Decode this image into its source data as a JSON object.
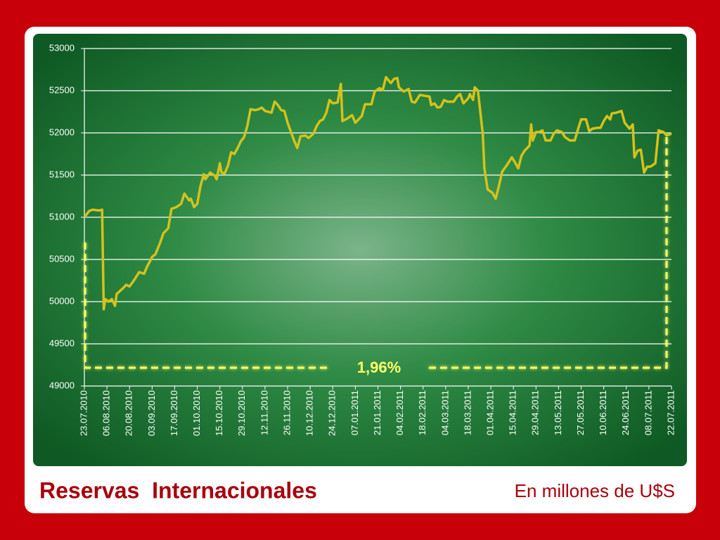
{
  "chart_data": {
    "type": "line",
    "title": "Reservas  Internacionales",
    "subtitle": "En millones de U$S",
    "annotation": "1,96%",
    "color": "#d4c21a",
    "grid": true,
    "ylim": [
      49000,
      53000
    ],
    "yticks": [
      49000,
      49500,
      50000,
      50500,
      51000,
      51500,
      52000,
      52500,
      53000
    ],
    "xlim": [
      "23.07.2010",
      "22.07.2011"
    ],
    "xticks": [
      "23.07.2010",
      "06.08.2010",
      "20.08.2010",
      "03.09.2010",
      "17.09.2010",
      "01.10.2010",
      "15.10.2010",
      "29.10.2010",
      "12.11.2010",
      "26.11.2010",
      "10.12.2010",
      "24.12.2010",
      "07.01.2011",
      "21.01.2011",
      "04.02.2011",
      "18.02.2011",
      "04.03.2011",
      "18.03.2011",
      "01.04.2011",
      "15.04.2011",
      "29.04.2011",
      "13.05.2011",
      "27.05.2011",
      "10.06.2011",
      "24.06.2011",
      "08.07.2011",
      "22.07.2011"
    ],
    "x": [
      "23.07.2010",
      "26.07.2010",
      "28.07.2010",
      "01.08.2010",
      "03.08.2010",
      "04.08.2010",
      "05.08.2010",
      "07.08.2010",
      "09.08.2010",
      "11.08.2010",
      "12.08.2010",
      "16.08.2010",
      "18.08.2010",
      "20.08.2010",
      "23.08.2010",
      "26.08.2010",
      "29.08.2010",
      "31.08.2010",
      "02.09.2010",
      "03.09.2010",
      "05.09.2010",
      "08.09.2010",
      "10.09.2010",
      "13.09.2010",
      "15.09.2010",
      "18.09.2010",
      "21.09.2010",
      "23.09.2010",
      "26.09.2010",
      "27.09.2010",
      "29.09.2010",
      "01.10.2010",
      "03.10.2010",
      "05.10.2010",
      "06.10.2010",
      "09.10.2010",
      "12.10.2010",
      "13.10.2010",
      "15.10.2010",
      "16.10.2010",
      "18.10.2010",
      "20.10.2010",
      "22.10.2010",
      "24.10.2010",
      "26.10.2010",
      "28.10.2010",
      "30.10.2010",
      "01.11.2010",
      "03.11.2010",
      "06.11.2010",
      "08.11.2010",
      "10.11.2010",
      "12.11.2010",
      "16.11.2010",
      "18.11.2010",
      "20.11.2010",
      "22.11.2010",
      "24.11.2010",
      "26.11.2010",
      "30.11.2010",
      "02.12.2010",
      "04.12.2010",
      "07.12.2010",
      "09.12.2010",
      "12.12.2010",
      "14.12.2010",
      "16.12.2010",
      "18.12.2010",
      "20.12.2010",
      "22.12.2010",
      "24.12.2010",
      "27.12.2010",
      "29.12.2010",
      "30.12.2010",
      "02.01.2011",
      "05.01.2011",
      "07.01.2011",
      "09.01.2011",
      "11.01.2011",
      "13.01.2011",
      "17.01.2011",
      "19.01.2011",
      "22.01.2011",
      "24.01.2011",
      "26.01.2011",
      "29.01.2011",
      "31.01.2011",
      "02.02.2011",
      "03.02.2011",
      "06.02.2011",
      "09.02.2011",
      "11.02.2011",
      "13.02.2011",
      "16.02.2011",
      "19.02.2011",
      "22.02.2011",
      "23.02.2011",
      "25.02.2011",
      "27.02.2011",
      "01.03.2011",
      "03.03.2011",
      "05.03.2011",
      "09.03.2011",
      "11.03.2011",
      "13.03.2011",
      "15.03.2011",
      "18.03.2011",
      "19.03.2011",
      "21.03.2011",
      "22.03.2011",
      "24.03.2011",
      "27.03.2011",
      "28.03.2011",
      "30.03.2011",
      "02.04.2011",
      "04.04.2011",
      "06.04.2011",
      "08.04.2011",
      "11.04.2011",
      "14.04.2011",
      "16.04.2011",
      "18.04.2011",
      "20.04.2011",
      "22.04.2011",
      "25.04.2011",
      "26.04.2011",
      "27.04.2011",
      "29.04.2011",
      "01.05.2011",
      "03.05.2011",
      "05.05.2011",
      "08.05.2011",
      "10.05.2011",
      "12.05.2011",
      "15.05.2011",
      "17.05.2011",
      "20.05.2011",
      "23.05.2011",
      "25.05.2011",
      "27.05.2011",
      "30.05.2011",
      "01.06.2011",
      "03.06.2011",
      "06.06.2011",
      "08.06.2011",
      "10.06.2011",
      "12.06.2011",
      "14.06.2011",
      "15.06.2011",
      "18.06.2011",
      "21.06.2011",
      "23.06.2011",
      "26.06.2011",
      "28.06.2011",
      "29.06.2011",
      "01.07.2011",
      "03.07.2011",
      "05.07.2011",
      "07.07.2011",
      "09.07.2011",
      "12.07.2011",
      "14.07.2011",
      "17.07.2011",
      "19.07.2011",
      "22.07.2011"
    ],
    "values": [
      51000,
      51075,
      51090,
      51080,
      51090,
      49910,
      50030,
      50000,
      50030,
      49950,
      50090,
      50160,
      50200,
      50180,
      50260,
      50350,
      50330,
      50420,
      50490,
      50530,
      50560,
      50700,
      50810,
      50870,
      51100,
      51120,
      51160,
      51280,
      51200,
      51220,
      51120,
      51160,
      51370,
      51510,
      51450,
      51530,
      51490,
      51450,
      51640,
      51530,
      51520,
      51610,
      51770,
      51750,
      51820,
      51900,
      51950,
      52080,
      52280,
      52270,
      52280,
      52300,
      52260,
      52240,
      52370,
      52330,
      52270,
      52260,
      52120,
      51910,
      51820,
      51960,
      51970,
      51940,
      51990,
      52080,
      52140,
      52160,
      52240,
      52390,
      52350,
      52360,
      52580,
      52140,
      52170,
      52210,
      52120,
      52160,
      52200,
      52340,
      52340,
      52490,
      52530,
      52510,
      52660,
      52590,
      52640,
      52650,
      52540,
      52490,
      52520,
      52370,
      52360,
      52450,
      52440,
      52430,
      52330,
      52350,
      52300,
      52310,
      52390,
      52370,
      52370,
      52430,
      52460,
      52350,
      52410,
      52460,
      52390,
      52540,
      52500,
      51990,
      51580,
      51330,
      51290,
      51220,
      51370,
      51540,
      51620,
      51710,
      51650,
      51580,
      51730,
      51790,
      51850,
      52100,
      51910,
      52010,
      52010,
      52030,
      51910,
      51910,
      51990,
      52030,
      52010,
      51950,
      51910,
      51910,
      52040,
      52160,
      52160,
      52020,
      52050,
      52060,
      52060,
      52140,
      52200,
      52160,
      52230,
      52240,
      52260,
      52120,
      52050,
      52100,
      51710,
      51790,
      51800,
      51530,
      51600,
      51600,
      51640,
      52030,
      52010,
      51970,
      51990
    ]
  }
}
